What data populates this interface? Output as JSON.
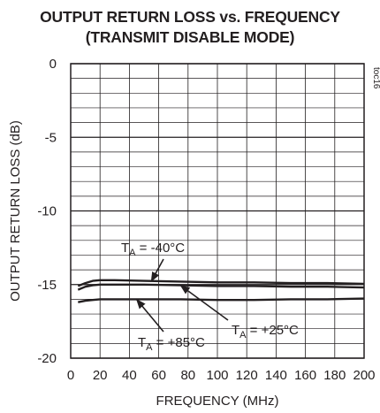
{
  "chart_data": {
    "type": "line",
    "title": "OUTPUT RETURN LOSS vs. FREQUENCY",
    "subtitle": "(TRANSMIT DISABLE MODE)",
    "xlabel": "FREQUENCY (MHz)",
    "ylabel": "OUTPUT RETURN LOSS (dB)",
    "xlim": [
      0,
      200
    ],
    "ylim": [
      -20,
      0
    ],
    "xticks": [
      0,
      20,
      40,
      60,
      80,
      100,
      120,
      140,
      160,
      180,
      200
    ],
    "yticks": [
      0,
      -5,
      -10,
      -15,
      -20
    ],
    "grid": true,
    "figure_code": "toc16",
    "series": [
      {
        "name": "TA = -40°C",
        "x": [
          5,
          10,
          15,
          20,
          30,
          50,
          75,
          100,
          125,
          150,
          175,
          200
        ],
        "y": [
          -15.1,
          -14.9,
          -14.75,
          -14.7,
          -14.7,
          -14.75,
          -14.8,
          -14.85,
          -14.85,
          -14.9,
          -14.9,
          -14.95
        ]
      },
      {
        "name": "TA = +25°C",
        "x": [
          5,
          10,
          15,
          20,
          30,
          50,
          75,
          100,
          125,
          150,
          175,
          200
        ],
        "y": [
          -15.35,
          -15.15,
          -15.05,
          -15.0,
          -15.0,
          -15.0,
          -15.05,
          -15.1,
          -15.1,
          -15.15,
          -15.15,
          -15.2
        ]
      },
      {
        "name": "TA = +85°C",
        "x": [
          5,
          10,
          15,
          20,
          30,
          50,
          75,
          100,
          125,
          150,
          175,
          200
        ],
        "y": [
          -16.2,
          -16.1,
          -16.05,
          -16.0,
          -16.0,
          -16.0,
          -16.0,
          -16.05,
          -16.05,
          -16.0,
          -16.0,
          -15.95
        ]
      }
    ],
    "annotations": [
      {
        "base": "T",
        "sub": "A",
        "rest": " = -40°C",
        "target": "TA = -40°C"
      },
      {
        "base": "T",
        "sub": "A",
        "rest": " = +25°C",
        "target": "TA = +25°C"
      },
      {
        "base": "T",
        "sub": "A",
        "rest": " = +85°C",
        "target": "TA = +85°C"
      }
    ]
  }
}
